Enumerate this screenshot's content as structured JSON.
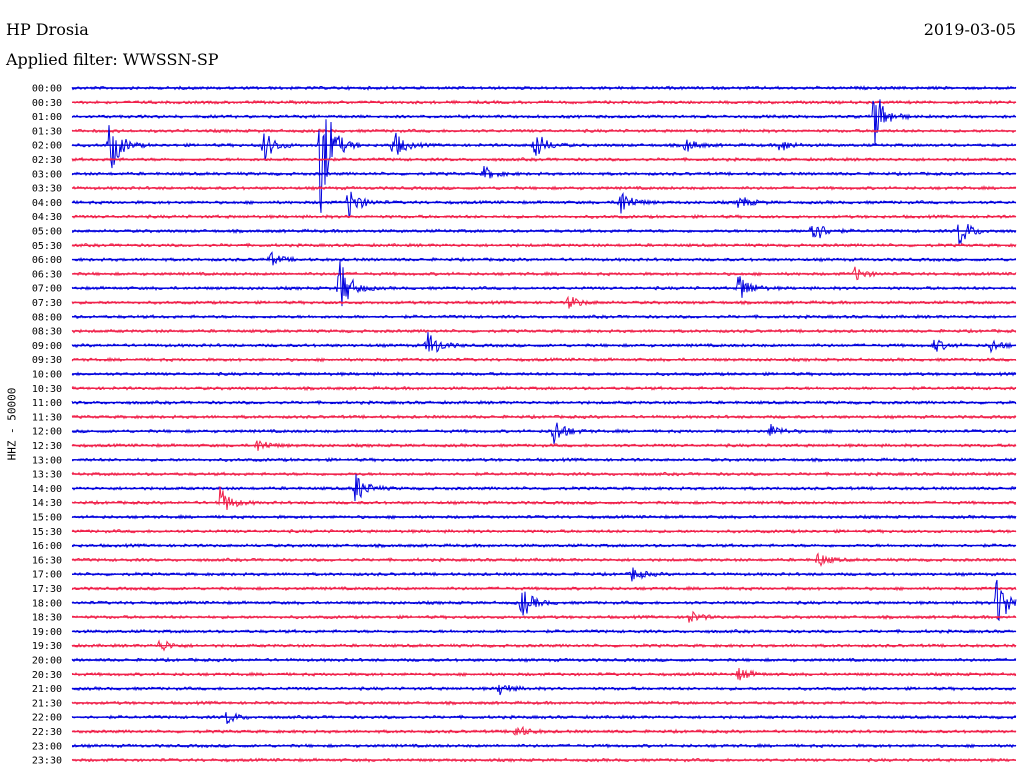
{
  "header": {
    "station": "HP Drosia",
    "date": "2019-03-05",
    "filter_label": "Applied filter: WWSSN-SP"
  },
  "chart_data": {
    "type": "line",
    "title": "HP Drosia",
    "ylabel": "HHZ - 50000",
    "trace_colors": [
      "#0000dd",
      "#f0204a"
    ],
    "y_ticks": [
      "00:00",
      "00:30",
      "01:00",
      "01:30",
      "02:00",
      "02:30",
      "03:00",
      "03:30",
      "04:00",
      "04:30",
      "05:00",
      "05:30",
      "06:00",
      "06:30",
      "07:00",
      "07:30",
      "08:00",
      "08:30",
      "09:00",
      "09:30",
      "10:00",
      "10:30",
      "11:00",
      "11:30",
      "12:00",
      "12:30",
      "13:00",
      "13:30",
      "14:00",
      "14:30",
      "15:00",
      "15:30",
      "16:00",
      "16:30",
      "17:00",
      "17:30",
      "18:00",
      "18:30",
      "19:00",
      "19:30",
      "20:00",
      "20:30",
      "21:00",
      "21:30",
      "22:00",
      "22:30",
      "23:00",
      "23:30"
    ],
    "x_range_minutes": [
      0,
      30
    ],
    "events": [
      {
        "row": "01:00",
        "minute": 25.5,
        "amplitude": 3
      },
      {
        "row": "02:00",
        "minute": 1.2,
        "amplitude": 3
      },
      {
        "row": "02:00",
        "minute": 6.1,
        "amplitude": 2
      },
      {
        "row": "02:00",
        "minute": 7.9,
        "amplitude": 5
      },
      {
        "row": "02:00",
        "minute": 10.2,
        "amplitude": 2
      },
      {
        "row": "02:00",
        "minute": 14.7,
        "amplitude": 2
      },
      {
        "row": "02:00",
        "minute": 19.5,
        "amplitude": 1
      },
      {
        "row": "02:00",
        "minute": 22.5,
        "amplitude": 1
      },
      {
        "row": "03:00",
        "minute": 13.1,
        "amplitude": 1
      },
      {
        "row": "04:00",
        "minute": 8.8,
        "amplitude": 2
      },
      {
        "row": "04:00",
        "minute": 17.4,
        "amplitude": 2
      },
      {
        "row": "04:00",
        "minute": 21.2,
        "amplitude": 1
      },
      {
        "row": "05:00",
        "minute": 23.5,
        "amplitude": 2
      },
      {
        "row": "05:00",
        "minute": 28.2,
        "amplitude": 2
      },
      {
        "row": "06:00",
        "minute": 6.3,
        "amplitude": 1
      },
      {
        "row": "06:30",
        "minute": 24.9,
        "amplitude": 1
      },
      {
        "row": "07:00",
        "minute": 8.5,
        "amplitude": 3
      },
      {
        "row": "07:00",
        "minute": 21.2,
        "amplitude": 2
      },
      {
        "row": "07:30",
        "minute": 15.8,
        "amplitude": 1
      },
      {
        "row": "09:00",
        "minute": 11.3,
        "amplitude": 2
      },
      {
        "row": "09:00",
        "minute": 27.4,
        "amplitude": 1
      },
      {
        "row": "09:00",
        "minute": 29.2,
        "amplitude": 1
      },
      {
        "row": "12:00",
        "minute": 15.3,
        "amplitude": 2
      },
      {
        "row": "12:00",
        "minute": 22.2,
        "amplitude": 1
      },
      {
        "row": "12:30",
        "minute": 5.9,
        "amplitude": 1
      },
      {
        "row": "14:00",
        "minute": 9.0,
        "amplitude": 2
      },
      {
        "row": "14:30",
        "minute": 4.7,
        "amplitude": 2
      },
      {
        "row": "16:30",
        "minute": 23.7,
        "amplitude": 1
      },
      {
        "row": "17:00",
        "minute": 17.8,
        "amplitude": 1
      },
      {
        "row": "18:00",
        "minute": 14.3,
        "amplitude": 2
      },
      {
        "row": "18:00",
        "minute": 29.4,
        "amplitude": 3
      },
      {
        "row": "18:30",
        "minute": 19.6,
        "amplitude": 1
      },
      {
        "row": "19:30",
        "minute": 2.8,
        "amplitude": 1
      },
      {
        "row": "20:30",
        "minute": 21.2,
        "amplitude": 1
      },
      {
        "row": "21:00",
        "minute": 13.6,
        "amplitude": 1
      },
      {
        "row": "22:00",
        "minute": 4.9,
        "amplitude": 1
      },
      {
        "row": "22:30",
        "minute": 14.1,
        "amplitude": 1
      }
    ]
  }
}
